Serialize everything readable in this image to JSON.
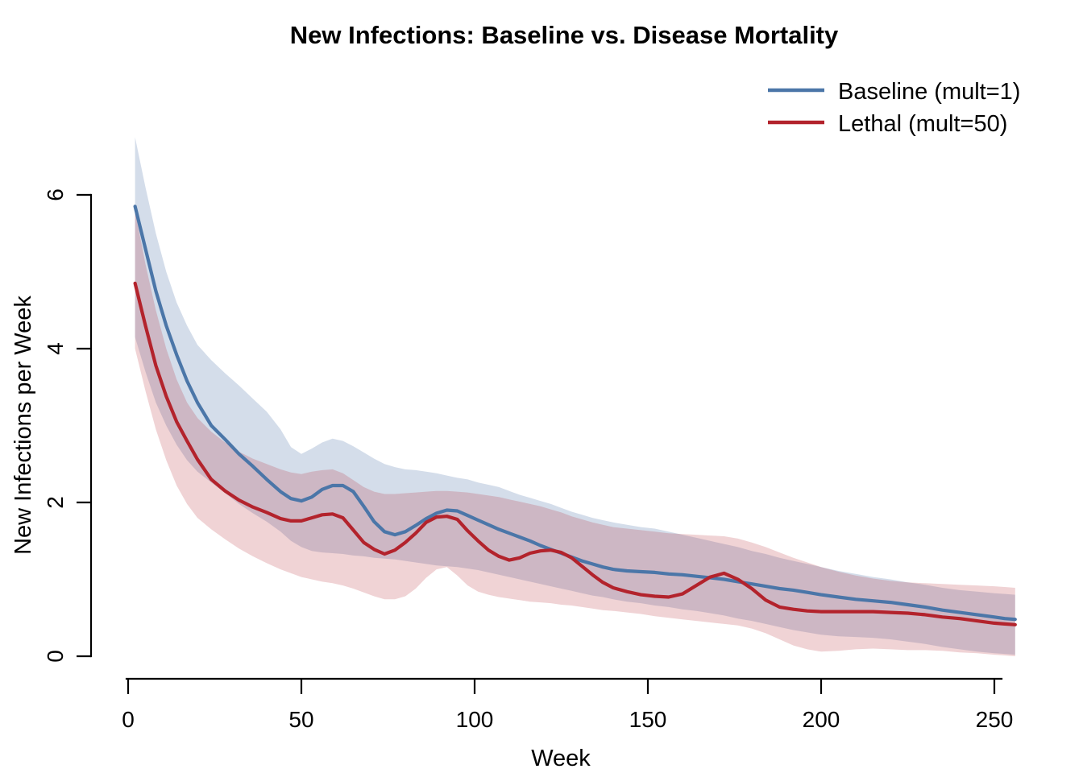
{
  "title": "New Infections: Baseline vs. Disease Mortality",
  "legend": {
    "items": [
      {
        "label": "Baseline (mult=1)",
        "color": "#4B76A8"
      },
      {
        "label": "Lethal (mult=50)",
        "color": "#B3232C"
      }
    ]
  },
  "chart_data": {
    "type": "line",
    "title": "New Infections: Baseline vs. Disease Mortality",
    "xlabel": "Week",
    "ylabel": "New Infections per Week",
    "x_ticks": [
      0,
      50,
      100,
      150,
      200,
      250
    ],
    "y_ticks": [
      0,
      2,
      4,
      6
    ],
    "xlim": [
      0,
      256
    ],
    "ylim": [
      0,
      6.9
    ],
    "legend_position": "top-right",
    "grid": false,
    "bands": "80% credible interval ribbons around each mean line",
    "x": [
      2,
      5,
      8,
      11,
      14,
      17,
      20,
      24,
      28,
      32,
      36,
      40,
      44,
      47,
      50,
      53,
      56,
      59,
      62,
      65,
      68,
      71,
      74,
      77,
      80,
      83,
      86,
      89,
      92,
      95,
      98,
      101,
      104,
      107,
      110,
      113,
      116,
      119,
      122,
      125,
      128,
      131,
      134,
      137,
      140,
      144,
      148,
      152,
      156,
      160,
      164,
      168,
      172,
      176,
      180,
      184,
      188,
      192,
      196,
      200,
      205,
      210,
      215,
      220,
      225,
      230,
      235,
      240,
      245,
      250,
      253,
      256
    ],
    "series": [
      {
        "name": "Baseline (mult=1)",
        "color": "#4B76A8",
        "band_color": "rgba(75,114,166,0.24)",
        "values": [
          5.85,
          5.3,
          4.75,
          4.3,
          3.92,
          3.58,
          3.3,
          3.0,
          2.82,
          2.63,
          2.47,
          2.3,
          2.14,
          2.05,
          2.02,
          2.07,
          2.17,
          2.22,
          2.22,
          2.14,
          1.95,
          1.75,
          1.62,
          1.58,
          1.62,
          1.7,
          1.79,
          1.86,
          1.9,
          1.89,
          1.83,
          1.77,
          1.71,
          1.65,
          1.6,
          1.55,
          1.5,
          1.44,
          1.39,
          1.34,
          1.29,
          1.24,
          1.2,
          1.16,
          1.13,
          1.11,
          1.1,
          1.09,
          1.07,
          1.06,
          1.04,
          1.02,
          1.0,
          0.97,
          0.94,
          0.91,
          0.88,
          0.86,
          0.83,
          0.8,
          0.77,
          0.74,
          0.72,
          0.7,
          0.67,
          0.64,
          0.6,
          0.57,
          0.54,
          0.51,
          0.49,
          0.48
        ],
        "lower": [
          4.15,
          3.7,
          3.3,
          3.0,
          2.75,
          2.55,
          2.4,
          2.26,
          2.12,
          1.98,
          1.86,
          1.75,
          1.62,
          1.5,
          1.42,
          1.37,
          1.35,
          1.34,
          1.33,
          1.31,
          1.3,
          1.28,
          1.27,
          1.26,
          1.24,
          1.22,
          1.2,
          1.18,
          1.17,
          1.16,
          1.14,
          1.12,
          1.09,
          1.06,
          1.03,
          1.0,
          0.97,
          0.94,
          0.91,
          0.88,
          0.85,
          0.82,
          0.79,
          0.77,
          0.74,
          0.71,
          0.69,
          0.66,
          0.64,
          0.61,
          0.59,
          0.56,
          0.53,
          0.49,
          0.46,
          0.42,
          0.38,
          0.34,
          0.31,
          0.28,
          0.26,
          0.25,
          0.24,
          0.22,
          0.19,
          0.16,
          0.12,
          0.09,
          0.06,
          0.04,
          0.03,
          0.02
        ],
        "upper": [
          6.75,
          6.1,
          5.5,
          5.0,
          4.6,
          4.3,
          4.05,
          3.85,
          3.68,
          3.52,
          3.35,
          3.18,
          2.95,
          2.72,
          2.63,
          2.7,
          2.78,
          2.83,
          2.8,
          2.73,
          2.65,
          2.57,
          2.5,
          2.46,
          2.43,
          2.42,
          2.4,
          2.38,
          2.35,
          2.32,
          2.3,
          2.26,
          2.23,
          2.2,
          2.15,
          2.1,
          2.06,
          2.02,
          1.98,
          1.93,
          1.88,
          1.84,
          1.8,
          1.77,
          1.74,
          1.71,
          1.68,
          1.66,
          1.62,
          1.58,
          1.54,
          1.5,
          1.46,
          1.42,
          1.37,
          1.33,
          1.28,
          1.24,
          1.2,
          1.16,
          1.11,
          1.07,
          1.03,
          1.0,
          0.96,
          0.93,
          0.89,
          0.86,
          0.84,
          0.82,
          0.81,
          0.8
        ]
      },
      {
        "name": "Lethal (mult=50)",
        "color": "#B3232C",
        "band_color": "rgba(178,34,44,0.20)",
        "values": [
          4.85,
          4.3,
          3.78,
          3.38,
          3.05,
          2.8,
          2.56,
          2.3,
          2.15,
          2.03,
          1.94,
          1.87,
          1.79,
          1.76,
          1.76,
          1.8,
          1.84,
          1.85,
          1.8,
          1.64,
          1.48,
          1.39,
          1.33,
          1.38,
          1.48,
          1.6,
          1.74,
          1.81,
          1.82,
          1.78,
          1.63,
          1.5,
          1.38,
          1.3,
          1.25,
          1.28,
          1.34,
          1.37,
          1.38,
          1.35,
          1.28,
          1.17,
          1.06,
          0.96,
          0.89,
          0.84,
          0.8,
          0.78,
          0.77,
          0.81,
          0.92,
          1.03,
          1.08,
          1.0,
          0.88,
          0.73,
          0.64,
          0.61,
          0.59,
          0.58,
          0.58,
          0.58,
          0.58,
          0.57,
          0.56,
          0.54,
          0.51,
          0.49,
          0.46,
          0.43,
          0.42,
          0.41
        ],
        "lower": [
          4.0,
          3.45,
          2.95,
          2.55,
          2.22,
          1.98,
          1.8,
          1.65,
          1.52,
          1.4,
          1.3,
          1.21,
          1.13,
          1.08,
          1.03,
          1.0,
          0.97,
          0.95,
          0.92,
          0.88,
          0.83,
          0.78,
          0.74,
          0.74,
          0.78,
          0.88,
          1.02,
          1.13,
          1.16,
          1.05,
          0.92,
          0.84,
          0.8,
          0.77,
          0.75,
          0.73,
          0.71,
          0.7,
          0.69,
          0.67,
          0.66,
          0.64,
          0.62,
          0.6,
          0.59,
          0.57,
          0.55,
          0.52,
          0.5,
          0.48,
          0.46,
          0.44,
          0.42,
          0.4,
          0.36,
          0.3,
          0.22,
          0.14,
          0.09,
          0.06,
          0.07,
          0.09,
          0.1,
          0.09,
          0.08,
          0.08,
          0.07,
          0.05,
          0.04,
          0.02,
          0.01,
          0.0
        ],
        "upper": [
          5.8,
          5.1,
          4.5,
          4.0,
          3.6,
          3.3,
          3.1,
          2.92,
          2.78,
          2.66,
          2.57,
          2.5,
          2.43,
          2.39,
          2.37,
          2.4,
          2.42,
          2.43,
          2.38,
          2.29,
          2.2,
          2.14,
          2.11,
          2.11,
          2.12,
          2.13,
          2.14,
          2.15,
          2.15,
          2.14,
          2.13,
          2.11,
          2.09,
          2.07,
          2.04,
          2.01,
          1.98,
          1.95,
          1.91,
          1.87,
          1.82,
          1.78,
          1.74,
          1.71,
          1.68,
          1.66,
          1.64,
          1.62,
          1.6,
          1.59,
          1.58,
          1.57,
          1.56,
          1.53,
          1.48,
          1.42,
          1.35,
          1.28,
          1.22,
          1.16,
          1.1,
          1.05,
          1.01,
          0.98,
          0.96,
          0.95,
          0.94,
          0.93,
          0.92,
          0.91,
          0.9,
          0.89
        ]
      }
    ]
  }
}
